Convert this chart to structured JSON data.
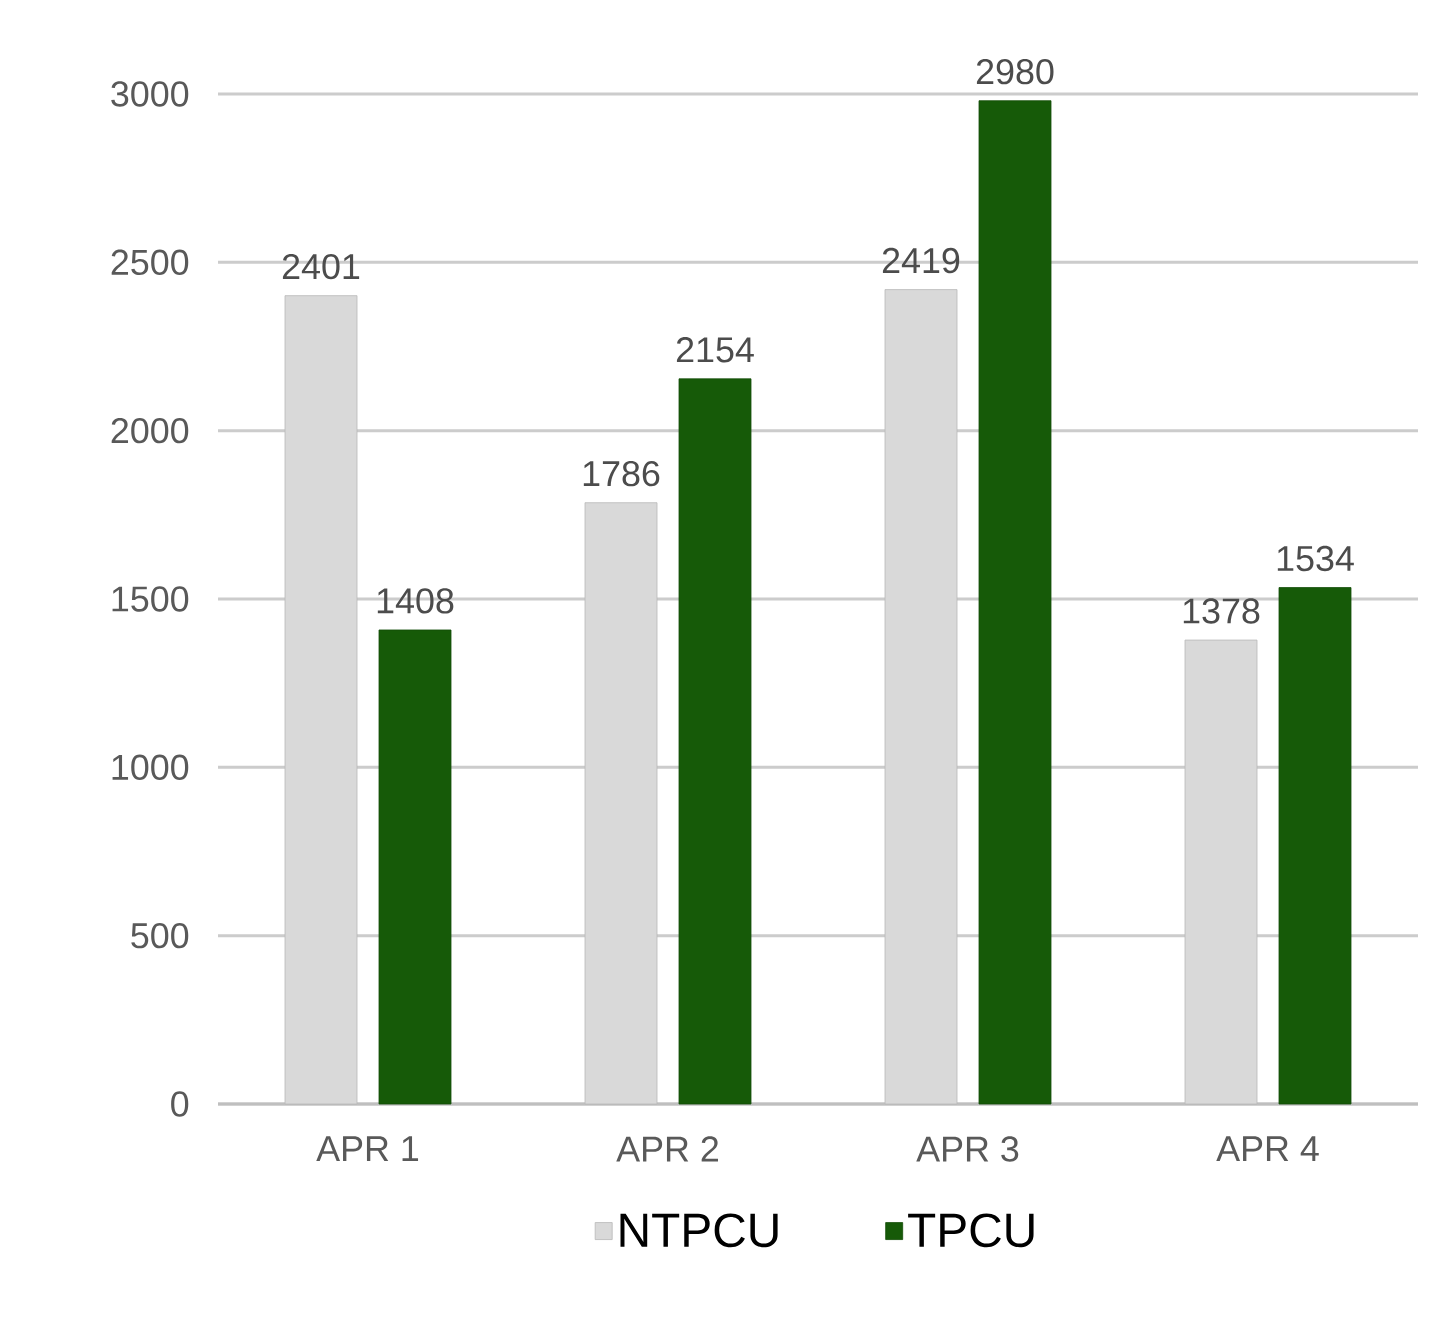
{
  "chart_data": {
    "type": "bar",
    "categories": [
      "APR 1",
      "APR 2",
      "APR 3",
      "APR 4"
    ],
    "series": [
      {
        "name": "NTPCU",
        "color": "#d9d9d9",
        "values": [
          2401,
          1786,
          2419,
          1378
        ]
      },
      {
        "name": "TPCU",
        "color": "#165a08",
        "values": [
          1408,
          2154,
          2980,
          1534
        ]
      }
    ],
    "ylim": [
      0,
      3000
    ],
    "yticks": [
      0,
      500,
      1000,
      1500,
      2000,
      2500,
      3000
    ],
    "grid": "y",
    "legend": "bottom",
    "data_labels": true
  }
}
